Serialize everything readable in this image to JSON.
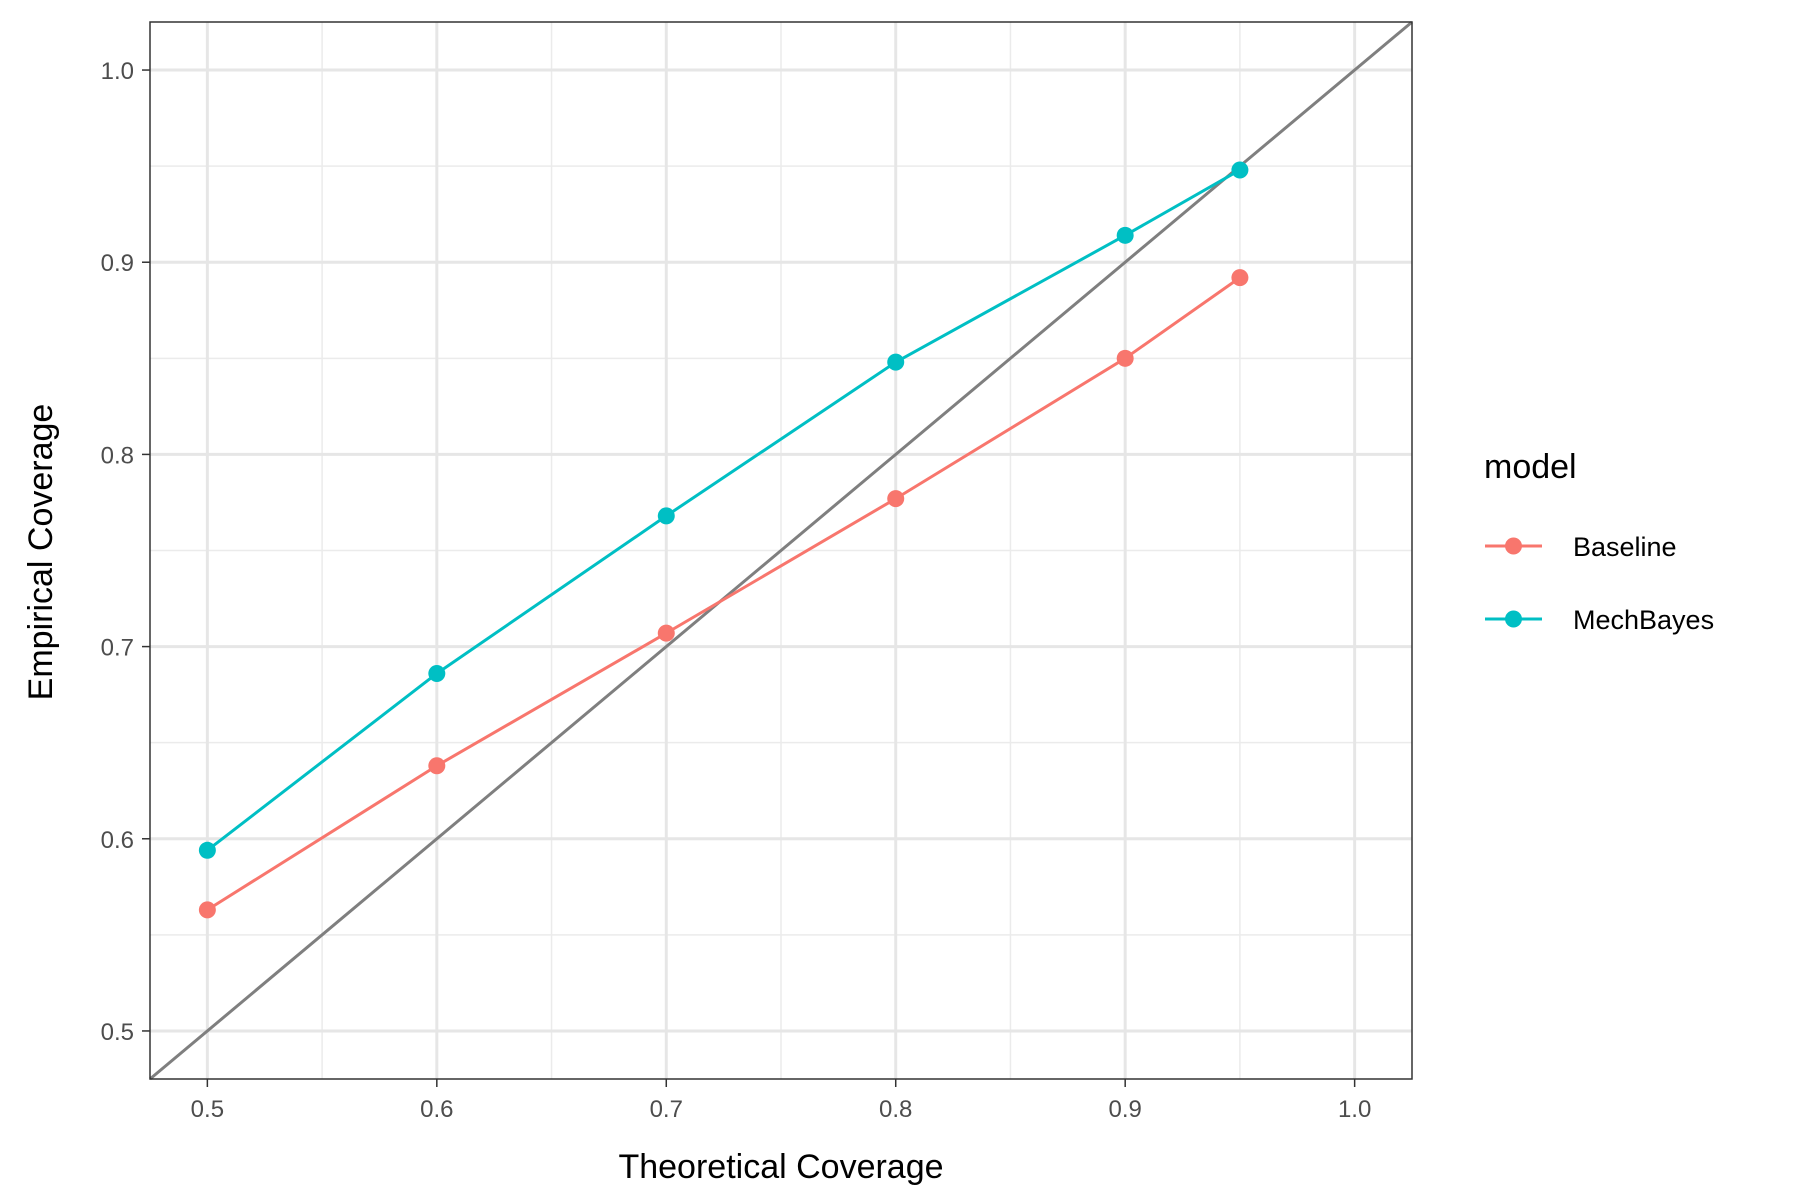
{
  "chart_data": {
    "type": "line",
    "xlabel": "Theoretical Coverage",
    "ylabel": "Empirical Coverage",
    "xlim": [
      0.475,
      1.025
    ],
    "ylim": [
      0.475,
      1.025
    ],
    "x_ticks": [
      0.5,
      0.6,
      0.7,
      0.8,
      0.9,
      1.0
    ],
    "x_tick_labels": [
      "0.5",
      "0.6",
      "0.7",
      "0.8",
      "0.9",
      "1.0"
    ],
    "y_ticks": [
      0.5,
      0.6,
      0.7,
      0.8,
      0.9,
      1.0
    ],
    "y_tick_labels": [
      "0.5",
      "0.6",
      "0.7",
      "0.8",
      "0.9",
      "1.0"
    ],
    "grid": true,
    "reference_line": {
      "slope": 1,
      "intercept": 0,
      "color": "#7f7f7f"
    },
    "legend": {
      "title": "model",
      "position": "right"
    },
    "x": [
      0.5,
      0.6,
      0.7,
      0.8,
      0.9,
      0.95
    ],
    "series": [
      {
        "name": "Baseline",
        "color": "#F8766D",
        "values": [
          0.563,
          0.638,
          0.707,
          0.777,
          0.85,
          0.892
        ]
      },
      {
        "name": "MechBayes",
        "color": "#00BFC4",
        "values": [
          0.594,
          0.686,
          0.768,
          0.848,
          0.914,
          0.948
        ]
      }
    ]
  }
}
